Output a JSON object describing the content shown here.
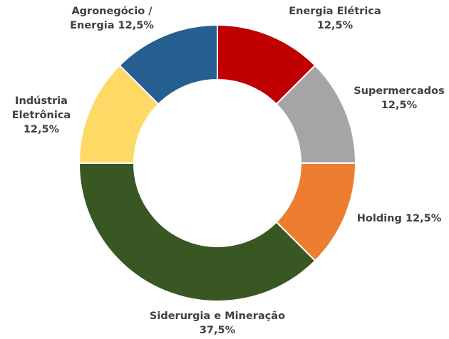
{
  "chart_data": {
    "type": "donut",
    "categories": [
      "Energia Elétrica",
      "Supermercados",
      "Holding",
      "Siderurgia e Mineração",
      "Indústria Eletrônica",
      "Agronegócio / Energia"
    ],
    "values": [
      12.5,
      12.5,
      12.5,
      37.5,
      12.5,
      12.5
    ],
    "value_labels": [
      "12,5%",
      "12,5%",
      "12,5%",
      "37,5%",
      "12,5%",
      "12,5%"
    ],
    "colors": [
      "#c00000",
      "#a5a5a5",
      "#ed7d31",
      "#385723",
      "#ffd966",
      "#255e91"
    ]
  }
}
